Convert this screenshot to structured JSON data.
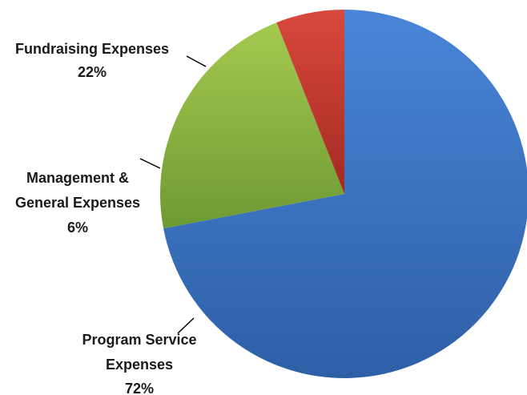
{
  "chart_data": {
    "type": "pie",
    "title": "",
    "slices": [
      {
        "label_lines": [
          "Program Service",
          "Expenses"
        ],
        "value": 72,
        "value_label": "72%",
        "color": "#3a70be"
      },
      {
        "label_lines": [
          "Fundraising Expenses"
        ],
        "value": 22,
        "value_label": "22%",
        "color": "#8cb446"
      },
      {
        "label_lines": [
          "Management &",
          "General Expenses"
        ],
        "value": 6,
        "value_label": "6%",
        "color": "#c0392f"
      }
    ],
    "legend": "none",
    "labels_position": "outside with leader lines"
  }
}
